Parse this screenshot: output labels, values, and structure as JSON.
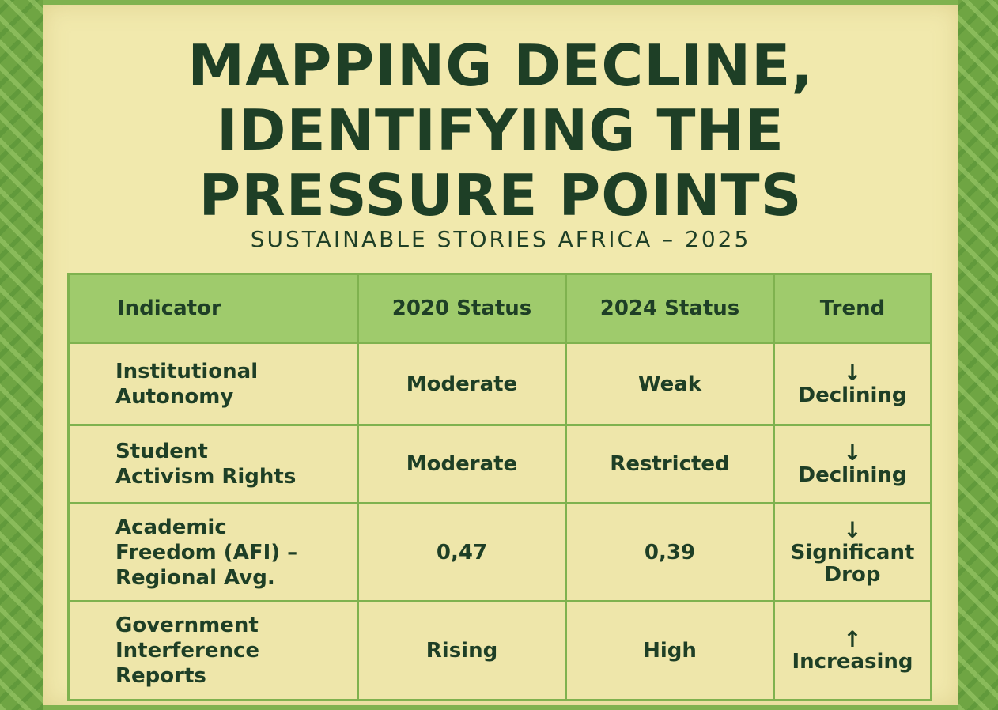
{
  "title_lines": [
    "MAPPING DECLINE,",
    "IDENTIFYING THE",
    "PRESSURE POINTS"
  ],
  "subtitle": "SUSTAINABLE STORIES AFRICA – 2025",
  "table": {
    "headers": [
      "Indicator",
      "2020 Status",
      "2024 Status",
      "Trend"
    ],
    "rows": [
      {
        "indicator": [
          "Institutional",
          "Autonomy"
        ],
        "status_2020": "Moderate",
        "status_2024": "Weak",
        "trend_arrow": "↓",
        "trend_label": [
          "Declining"
        ]
      },
      {
        "indicator": [
          "Student",
          "Activism Rights"
        ],
        "status_2020": "Moderate",
        "status_2024": "Restricted",
        "trend_arrow": "↓",
        "trend_label": [
          "Declining"
        ]
      },
      {
        "indicator": [
          "Academic",
          "Freedom (AFI) –",
          "Regional Avg."
        ],
        "status_2020": "0,47",
        "status_2024": "0,39",
        "trend_arrow": "↓",
        "trend_label": [
          "Significant",
          "Drop"
        ]
      },
      {
        "indicator": [
          "Government",
          "Interference",
          "Reports"
        ],
        "status_2020": "Rising",
        "status_2024": "High",
        "trend_arrow": "↑",
        "trend_label": [
          "Increasing"
        ]
      }
    ]
  },
  "colors": {
    "border_green": "#7fb24f",
    "panel_cream": "#f1e9ad",
    "header_green": "#9fcb6c",
    "text_dark_green": "#1e3f26"
  }
}
